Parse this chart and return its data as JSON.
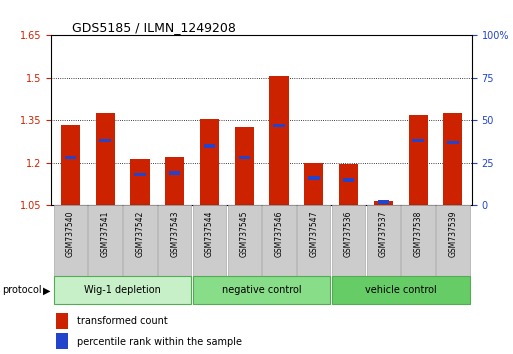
{
  "title": "GDS5185 / ILMN_1249208",
  "samples": [
    "GSM737540",
    "GSM737541",
    "GSM737542",
    "GSM737543",
    "GSM737544",
    "GSM737545",
    "GSM737546",
    "GSM737547",
    "GSM737536",
    "GSM737537",
    "GSM737538",
    "GSM737539"
  ],
  "red_values": [
    1.335,
    1.375,
    1.215,
    1.22,
    1.355,
    1.325,
    1.505,
    1.2,
    1.195,
    1.065,
    1.37,
    1.375
  ],
  "blue_values_pct": [
    28,
    38,
    18,
    19,
    35,
    28,
    47,
    16,
    15,
    2,
    38,
    37
  ],
  "groups": [
    {
      "label": "Wig-1 depletion",
      "start": 0,
      "end": 3,
      "color": "#c8f0c8"
    },
    {
      "label": "negative control",
      "start": 4,
      "end": 7,
      "color": "#88dd88"
    },
    {
      "label": "vehicle control",
      "start": 8,
      "end": 11,
      "color": "#66cc66"
    }
  ],
  "ymin": 1.05,
  "ymax": 1.65,
  "yticks_left": [
    1.05,
    1.2,
    1.35,
    1.5,
    1.65
  ],
  "yticks_right": [
    0,
    25,
    50,
    75,
    100
  ],
  "bar_color": "#cc2200",
  "blue_color": "#2244cc",
  "legend_items": [
    "transformed count",
    "percentile rank within the sample"
  ],
  "bar_width": 0.55,
  "baseline": 1.05,
  "grid_lines": [
    1.2,
    1.35,
    1.5
  ],
  "xlabel_box_color": "#cccccc",
  "xlabel_box_edge": "#aaaaaa"
}
